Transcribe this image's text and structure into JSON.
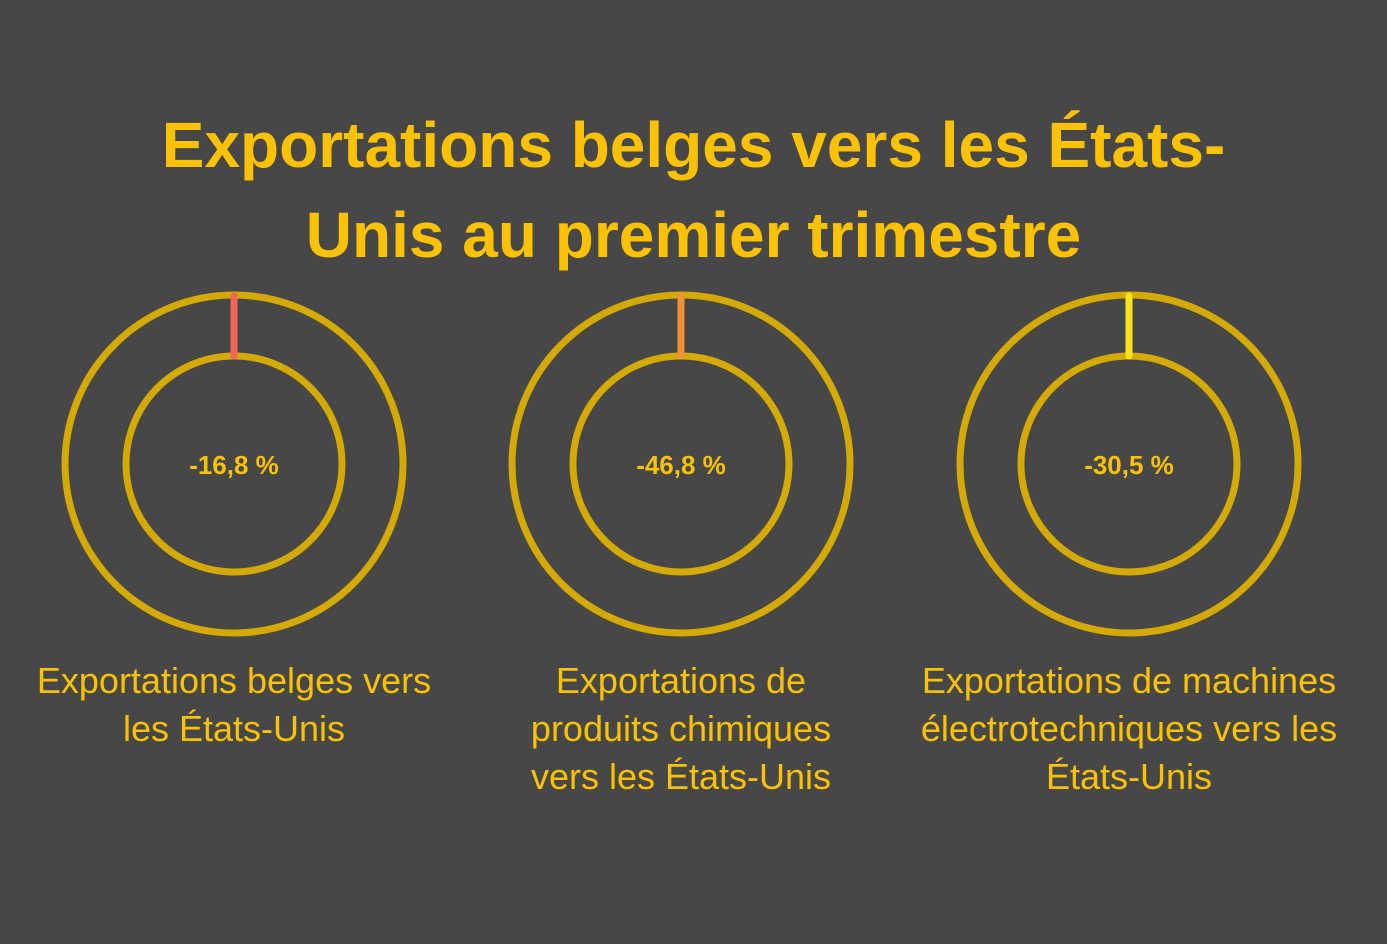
{
  "title_line1": "Exportations belges vers les États-",
  "title_line2": "Unis au premier trimestre",
  "colors": {
    "background": "#474747",
    "accent": "#fcc200",
    "ring": "#d4a900"
  },
  "chart_data": {
    "type": "donut",
    "title": "Exportations belges vers les États-Unis au premier trimestre",
    "items": [
      {
        "label": "Exportations belges vers les États-Unis",
        "value": -16.8,
        "display": "-16,8 %",
        "marker_color": "#f0675a"
      },
      {
        "label": "Exportations de produits chimiques vers les États-Unis",
        "value": -46.8,
        "display": "-46,8 %",
        "marker_color": "#f0913a"
      },
      {
        "label": "Exportations de machines électrotechniques vers les États-Unis",
        "value": -30.5,
        "display": "-30,5 %",
        "marker_color": "#ffe31a"
      }
    ]
  }
}
